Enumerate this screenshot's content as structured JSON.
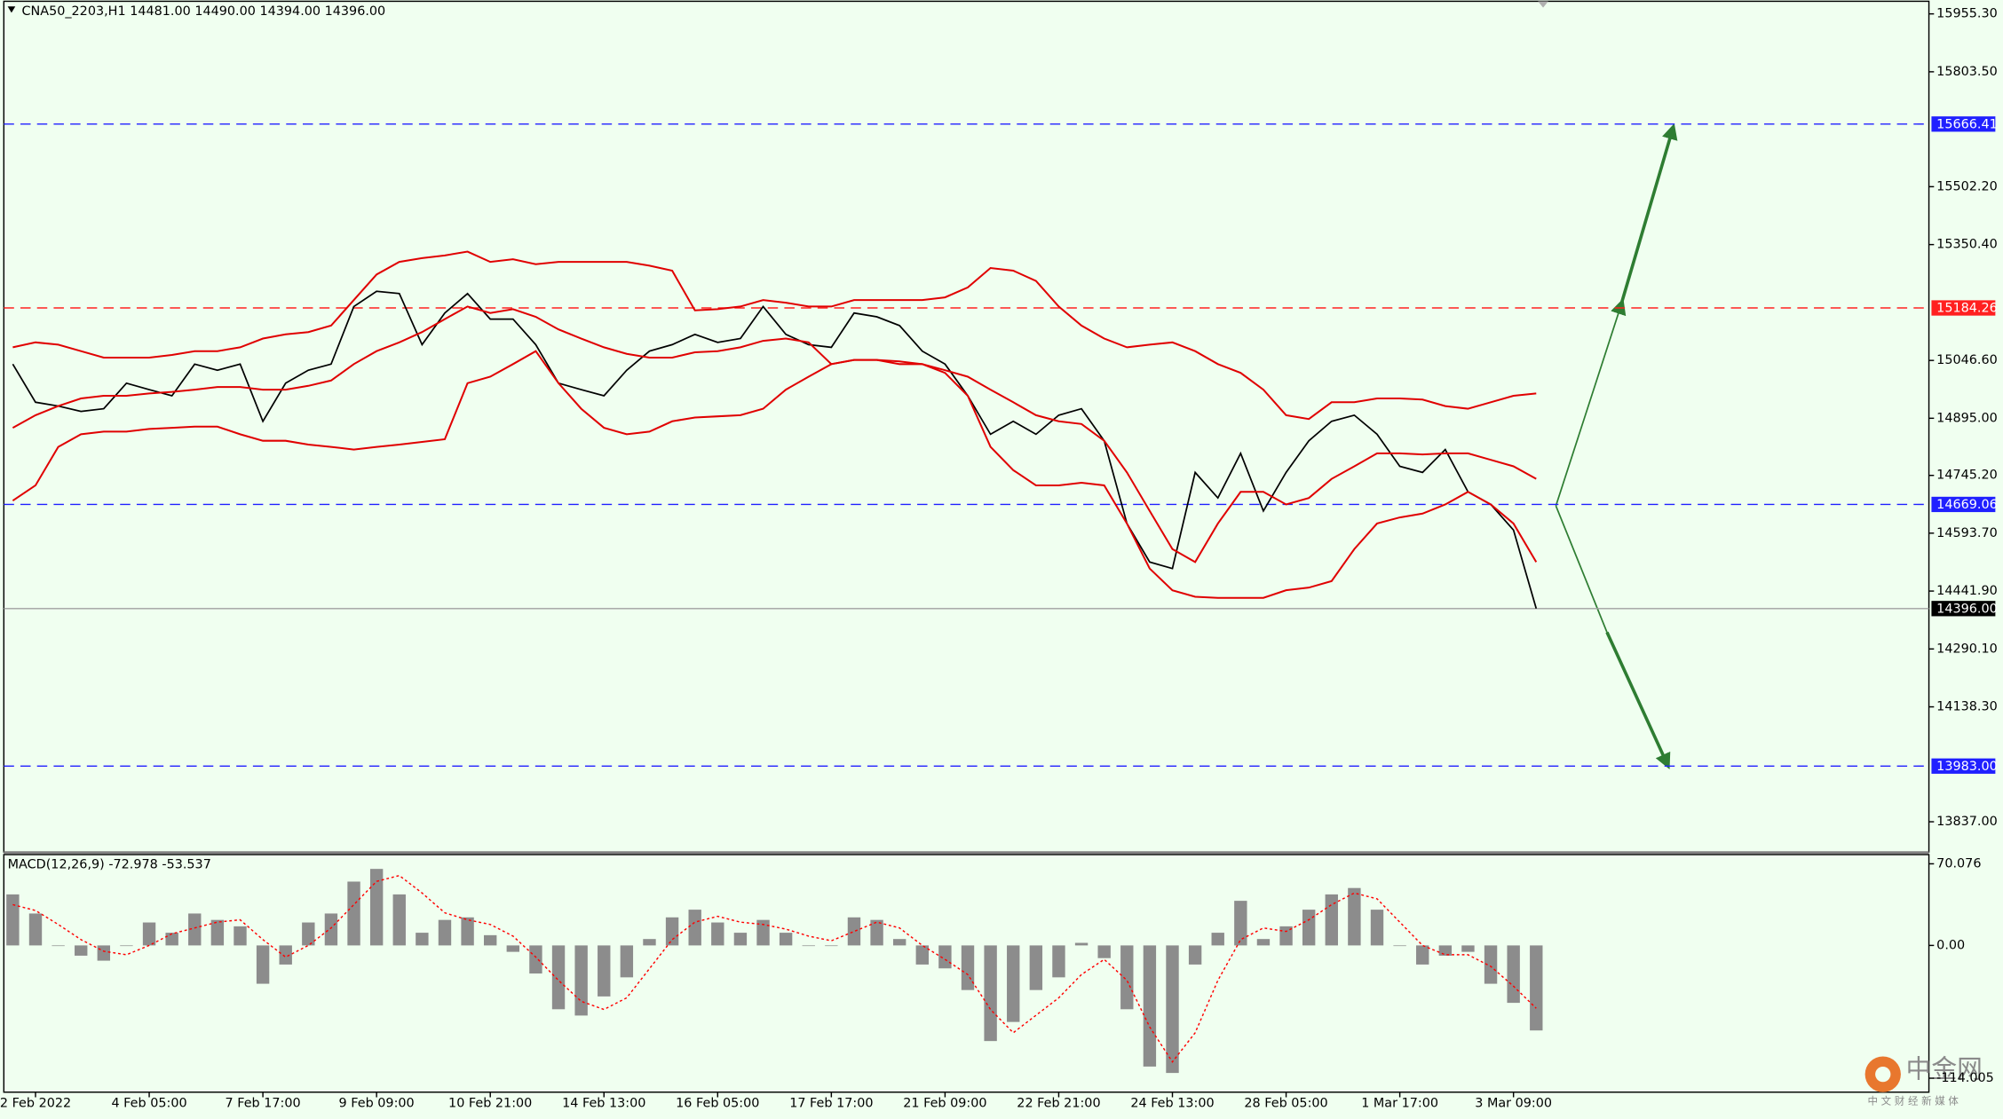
{
  "chart_data": [
    {
      "type": "line",
      "title": "CNA50_2203,H1  14481.00 14490.00 14394.00 14396.00",
      "categories": [
        null,
        "2 Feb 2022",
        null,
        null,
        null,
        null,
        "4 Feb 05:00",
        null,
        null,
        null,
        null,
        "7 Feb 17:00",
        null,
        null,
        null,
        null,
        "9 Feb 09:00",
        null,
        null,
        null,
        null,
        "10 Feb 21:00",
        null,
        null,
        null,
        null,
        "14 Feb 13:00",
        null,
        null,
        null,
        null,
        "16 Feb 05:00",
        null,
        null,
        null,
        null,
        "17 Feb 17:00",
        null,
        null,
        null,
        null,
        "21 Feb 09:00",
        null,
        null,
        null,
        null,
        "22 Feb 21:00",
        null,
        null,
        null,
        null,
        "24 Feb 13:00",
        null,
        null,
        null,
        null,
        "28 Feb 05:00",
        null,
        null,
        null,
        null,
        "1 Mar 17:00",
        null,
        null,
        null,
        null,
        "3 Mar 09:00",
        null
      ],
      "series": [
        {
          "color": "#000000",
          "values": [
            15037,
            14937,
            14927,
            14913,
            14920,
            14987,
            14970,
            14954,
            15037,
            15021,
            15037,
            14887,
            14987,
            15021,
            15037,
            15188,
            15228,
            15222,
            15088,
            15171,
            15222,
            15155,
            15155,
            15088,
            14987,
            14970,
            14954,
            15021,
            15071,
            15088,
            15115,
            15094,
            15104,
            15188,
            15115,
            15088,
            15081,
            15171,
            15161,
            15138,
            15071,
            15037,
            14954,
            14853,
            14887,
            14853,
            14903,
            14920,
            14836,
            14619,
            14518,
            14501,
            14753,
            14686,
            14803,
            14652,
            14753,
            14836,
            14887,
            14903,
            14853,
            14769,
            14753,
            14813,
            14702,
            14669,
            14602,
            14396
          ]
        },
        {
          "color": "#e00000",
          "values": [
            15081,
            15094,
            15088,
            15071,
            15054,
            15054,
            15054,
            15061,
            15071,
            15071,
            15081,
            15104,
            15115,
            15121,
            15138,
            15205,
            15272,
            15305,
            15315,
            15322,
            15332,
            15305,
            15312,
            15299,
            15305,
            15305,
            15305,
            15305,
            15295,
            15282,
            15178,
            15181,
            15188,
            15205,
            15198,
            15188,
            15188,
            15205,
            15205,
            15205,
            15205,
            15212,
            15238,
            15289,
            15282,
            15255,
            15188,
            15138,
            15104,
            15081,
            15088,
            15094,
            15071,
            15037,
            15014,
            14970,
            14903,
            14893,
            14937,
            14937,
            14947,
            14947,
            14944,
            14927,
            14920,
            14937,
            14954,
            14960
          ]
        },
        {
          "color": "#e00000",
          "values": [
            14870,
            14903,
            14927,
            14947,
            14954,
            14954,
            14960,
            14964,
            14970,
            14977,
            14977,
            14970,
            14970,
            14980,
            14994,
            15037,
            15071,
            15094,
            15121,
            15155,
            15188,
            15171,
            15181,
            15161,
            15128,
            15104,
            15081,
            15064,
            15054,
            15054,
            15068,
            15071,
            15081,
            15098,
            15104,
            15094,
            15037,
            15048,
            15048,
            15044,
            15037,
            15021,
            15004,
            14970,
            14937,
            14903,
            14887,
            14880,
            14836,
            14753,
            14652,
            14552,
            14518,
            14619,
            14702,
            14702,
            14669,
            14686,
            14736,
            14769,
            14803,
            14803,
            14800,
            14803,
            14803,
            14786,
            14769,
            14736
          ]
        },
        {
          "color": "#e00000",
          "values": [
            14679,
            14719,
            14820,
            14853,
            14860,
            14860,
            14867,
            14870,
            14873,
            14873,
            14853,
            14836,
            14836,
            14826,
            14820,
            14813,
            14820,
            14826,
            14833,
            14840,
            14987,
            15004,
            15037,
            15071,
            14987,
            14920,
            14870,
            14853,
            14860,
            14887,
            14897,
            14900,
            14903,
            14920,
            14970,
            15004,
            15037,
            15048,
            15048,
            15037,
            15037,
            15014,
            14954,
            14820,
            14759,
            14719,
            14719,
            14726,
            14719,
            14619,
            14501,
            14444,
            14427,
            14424,
            14424,
            14424,
            14444,
            14451,
            14468,
            14552,
            14619,
            14635,
            14645,
            14669,
            14702,
            14669,
            14619,
            14518
          ]
        }
      ],
      "ylim": [
        13761,
        15985
      ],
      "yticks": [
        {
          "value": 15955.3,
          "label": "15955.30"
        },
        {
          "value": 15803.5,
          "label": "15803.50"
        },
        {
          "value": 15502.2,
          "label": "15502.20"
        },
        {
          "value": 15350.4,
          "label": "15350.40"
        },
        {
          "value": 15046.6,
          "label": "15046.60"
        },
        {
          "value": 14895,
          "label": "14895.00"
        },
        {
          "value": 14745.2,
          "label": "14745.20"
        },
        {
          "value": 14593.7,
          "label": "14593.70"
        },
        {
          "value": 14441.9,
          "label": "14441.90"
        },
        {
          "value": 14290.1,
          "label": "14290.10"
        },
        {
          "value": 14138.3,
          "label": "14138.30"
        },
        {
          "value": 13837,
          "label": "13837.00"
        }
      ],
      "levels": [
        {
          "value": 15666.41,
          "label": "15666.41",
          "color": "#2020ff",
          "dashed": true
        },
        {
          "value": 15184.26,
          "label": "15184.26",
          "color": "#ff2020",
          "dashed": true
        },
        {
          "value": 14669.06,
          "label": "14669.06",
          "color": "#2020ff",
          "dashed": true
        },
        {
          "value": 13983,
          "label": "13983.00",
          "color": "#2020ff",
          "dashed": true
        },
        {
          "value": 14396,
          "label": "14396.00",
          "color": "#000000",
          "dashed": false
        }
      ]
    },
    {
      "type": "bar",
      "title": "MACD(12,26,9) -72.978 -53.537",
      "series": [
        {
          "color": "#8c8c8c",
          "values": [
            43.8,
            27.4,
            0,
            -8.8,
            -13.1,
            0,
            19.7,
            10.9,
            27.4,
            21.9,
            16.4,
            -32.9,
            -16.4,
            19.7,
            27.4,
            54.8,
            65.7,
            43.8,
            10.9,
            21.9,
            24.1,
            8.8,
            -5.5,
            -24.1,
            -54.8,
            -60.2,
            -43.8,
            -27.4,
            5.5,
            24.1,
            30.7,
            19.7,
            10.9,
            21.9,
            10.9,
            0,
            0,
            24.1,
            21.9,
            5.5,
            -16.4,
            -19.7,
            -38.3,
            -82.1,
            -65.7,
            -38.3,
            -27.4,
            2.2,
            -10.9,
            -54.8,
            -104,
            -109.5,
            -16.4,
            10.9,
            38.3,
            5.5,
            16.4,
            30.7,
            43.8,
            49.3,
            30.7,
            0,
            -16.4,
            -8.8,
            -5.5,
            -32.9,
            -49.3,
            -73
          ]
        },
        {
          "color": "#ff0000",
          "dotted": true,
          "values": [
            35,
            30,
            18,
            5,
            -5,
            -8,
            0,
            10,
            15,
            20,
            22,
            5,
            -10,
            0,
            15,
            35,
            55,
            60,
            45,
            28,
            22,
            18,
            8,
            -10,
            -30,
            -48,
            -55,
            -45,
            -20,
            5,
            20,
            25,
            20,
            18,
            14,
            8,
            4,
            12,
            20,
            15,
            0,
            -12,
            -25,
            -55,
            -75,
            -60,
            -45,
            -25,
            -12,
            -30,
            -70,
            -100,
            -75,
            -30,
            5,
            15,
            12,
            22,
            35,
            45,
            40,
            20,
            0,
            -8,
            -8,
            -18,
            -35,
            -54
          ]
        }
      ],
      "ylim": [
        -126,
        78
      ],
      "yticks": [
        70.076,
        {
          "value": 0,
          "label": "0.00"
        },
        -114.005
      ]
    }
  ],
  "watermark": {
    "title": "中金网",
    "subtitle": "中 文 财 经 新 媒 体"
  }
}
